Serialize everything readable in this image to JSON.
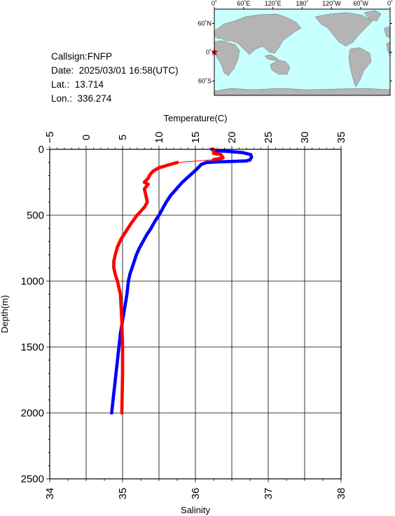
{
  "station": {
    "callsign": "Callsign:FNFP",
    "date": "Date:  2025/03/01 16:58(UTC)",
    "lat": "Lat.:  13.714",
    "lon": "Lon.:  336.274"
  },
  "map": {
    "lon_labels": [
      "0˚",
      "60˚E",
      "120˚E",
      "180˚",
      "120˚W",
      "60˚W",
      "0˚"
    ],
    "lat_labels": [
      "60˚N",
      "0˚",
      "60˚S"
    ],
    "ocean_color": "#c8ffff",
    "land_color": "#b4b4b4",
    "marker_color": "#ff0000",
    "marker_icon": "star-icon"
  },
  "chart_data": {
    "type": "line",
    "ylabel": "Depth(m)",
    "ylim": [
      0,
      2500
    ],
    "y_inverted": true,
    "y_ticks": [
      0,
      500,
      1000,
      1500,
      2000,
      2500
    ],
    "top_axis": {
      "label": "Temperature(C)",
      "range": [
        -5,
        35
      ],
      "ticks": [
        -5,
        0,
        5,
        10,
        15,
        20,
        25,
        30,
        35
      ]
    },
    "bottom_axis": {
      "label": "Salinity",
      "range": [
        34,
        38
      ],
      "ticks": [
        34,
        35,
        36,
        37,
        38
      ]
    },
    "grid": true,
    "series": [
      {
        "variable": "temperature",
        "color": "#0000ff",
        "axis": "top",
        "points": [
          [
            17.3,
            0
          ],
          [
            17.5,
            10
          ],
          [
            19.3,
            15
          ],
          [
            21.5,
            25
          ],
          [
            22.6,
            40
          ],
          [
            22.7,
            60
          ],
          [
            22.5,
            80
          ],
          [
            22.0,
            88
          ],
          [
            20.0,
            92
          ],
          [
            18.0,
            95
          ],
          [
            16.5,
            100
          ],
          [
            15.8,
            115
          ],
          [
            15.2,
            150
          ],
          [
            14.2,
            200
          ],
          [
            13.2,
            250
          ],
          [
            12.4,
            300
          ],
          [
            11.6,
            350
          ],
          [
            11.0,
            400
          ],
          [
            10.5,
            450
          ],
          [
            10.0,
            500
          ],
          [
            9.4,
            550
          ],
          [
            8.9,
            600
          ],
          [
            8.3,
            650
          ],
          [
            7.8,
            700
          ],
          [
            7.3,
            750
          ],
          [
            6.9,
            800
          ],
          [
            6.6,
            850
          ],
          [
            6.3,
            900
          ],
          [
            6.0,
            950
          ],
          [
            5.8,
            1000
          ],
          [
            5.6,
            1100
          ],
          [
            5.3,
            1200
          ],
          [
            5.0,
            1300
          ],
          [
            4.7,
            1400
          ],
          [
            4.5,
            1500
          ],
          [
            4.3,
            1600
          ],
          [
            4.1,
            1700
          ],
          [
            3.9,
            1800
          ],
          [
            3.7,
            1900
          ],
          [
            3.5,
            2000
          ]
        ]
      },
      {
        "variable": "salinity",
        "color": "#ff0000",
        "axis": "bottom",
        "points": [
          [
            36.25,
            0
          ],
          [
            36.25,
            30
          ],
          [
            36.35,
            40
          ],
          [
            36.38,
            65
          ],
          [
            36.25,
            78
          ],
          [
            35.75,
            100
          ],
          [
            35.65,
            115
          ],
          [
            35.5,
            140
          ],
          [
            35.42,
            165
          ],
          [
            35.38,
            190
          ],
          [
            35.35,
            220
          ],
          [
            35.3,
            250
          ],
          [
            35.35,
            265
          ],
          [
            35.3,
            300
          ],
          [
            35.32,
            350
          ],
          [
            35.34,
            400
          ],
          [
            35.3,
            440
          ],
          [
            35.2,
            500
          ],
          [
            35.12,
            560
          ],
          [
            35.05,
            620
          ],
          [
            34.98,
            680
          ],
          [
            34.93,
            740
          ],
          [
            34.9,
            800
          ],
          [
            34.88,
            850
          ],
          [
            34.88,
            900
          ],
          [
            34.9,
            950
          ],
          [
            34.93,
            1000
          ],
          [
            34.95,
            1050
          ],
          [
            34.97,
            1100
          ],
          [
            34.98,
            1200
          ],
          [
            34.99,
            1300
          ],
          [
            35.0,
            1500
          ],
          [
            35.0,
            1700
          ],
          [
            34.99,
            2000
          ]
        ]
      }
    ]
  }
}
